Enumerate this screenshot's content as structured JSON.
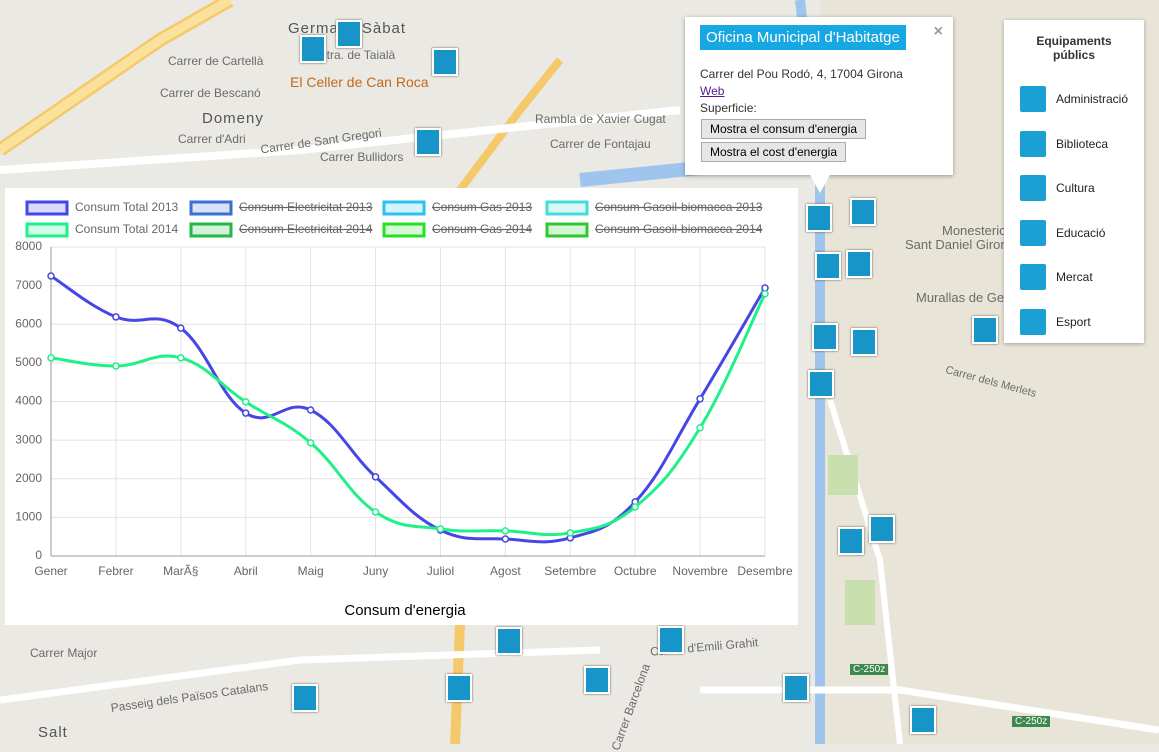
{
  "chart_data": {
    "type": "line",
    "x_label": "Consum d'energia",
    "categories": [
      "Gener",
      "Febrer",
      "MarÃ§",
      "Abril",
      "Maig",
      "Juny",
      "Juliol",
      "Agost",
      "Setembre",
      "Octubre",
      "Novembre",
      "Desembre"
    ],
    "series": [
      {
        "name": "Consum Total 2013",
        "color": "#4646e6",
        "values": [
          7250,
          6190,
          5900,
          3700,
          3780,
          2050,
          670,
          440,
          470,
          1400,
          4070,
          6940
        ]
      },
      {
        "name": "Consum Electricitat 2013",
        "color": "#3a6fd0",
        "hidden": true
      },
      {
        "name": "Consum Gas 2013",
        "color": "#2ac3ee",
        "hidden": true
      },
      {
        "name": "Consum Gasoil-biomacca 2013",
        "color": "#45dcd8",
        "hidden": true
      },
      {
        "name": "Consum Total 2014",
        "color": "#1ef08a",
        "values": [
          5130,
          4920,
          5130,
          3990,
          2930,
          1140,
          700,
          650,
          600,
          1270,
          3320,
          6790
        ]
      },
      {
        "name": "Consum Electricitat 2014",
        "color": "#22b845",
        "hidden": true
      },
      {
        "name": "Consum Gas 2014",
        "color": "#26e026",
        "hidden": true
      },
      {
        "name": "Consum Gasoil-biomacca 2014",
        "color": "#2ec82e",
        "hidden": true
      }
    ],
    "ylim": [
      0,
      8000
    ],
    "yticks": [
      0,
      1000,
      2000,
      3000,
      4000,
      5000,
      6000,
      7000,
      8000
    ],
    "grid": true
  },
  "popup": {
    "title": "Oficina Municipal d'Habitatge",
    "close": "×",
    "address": "Carrer del Pou Rodó, 4, 17004 Girona",
    "link": "Web",
    "surface": "Superficie:",
    "buttons": [
      "Mostra el consum d'energia",
      "Mostra el cost d'energia"
    ]
  },
  "panel": {
    "title": "Equipaments públics",
    "items": [
      "Administració",
      "Biblioteca",
      "Cultura",
      "Educació",
      "Mercat",
      "Esport"
    ]
  },
  "map": {
    "labels": [
      "Germans Sàbat",
      "Ctra. de Taialà",
      "Carrer de Cartellà",
      "El Celler de Can Roca",
      "Carrer de Bescanó",
      "Domeny",
      "Carrer d'Adri",
      "Carrer de Sant Gregori",
      "Carrer Bullidors",
      "Rambla de Xavier Cugat",
      "Carrer de Fontajau",
      "Monesterio de",
      "Sant Daniel Girona",
      "Murallas de Ge",
      "Carrer dels Merlets",
      "Carrer Major",
      "Salt",
      "Passeig dels Països Catalans",
      "Carrer d'Emili Grahit",
      "C-250z",
      "C-250z",
      "Carrer Barcelona"
    ]
  }
}
